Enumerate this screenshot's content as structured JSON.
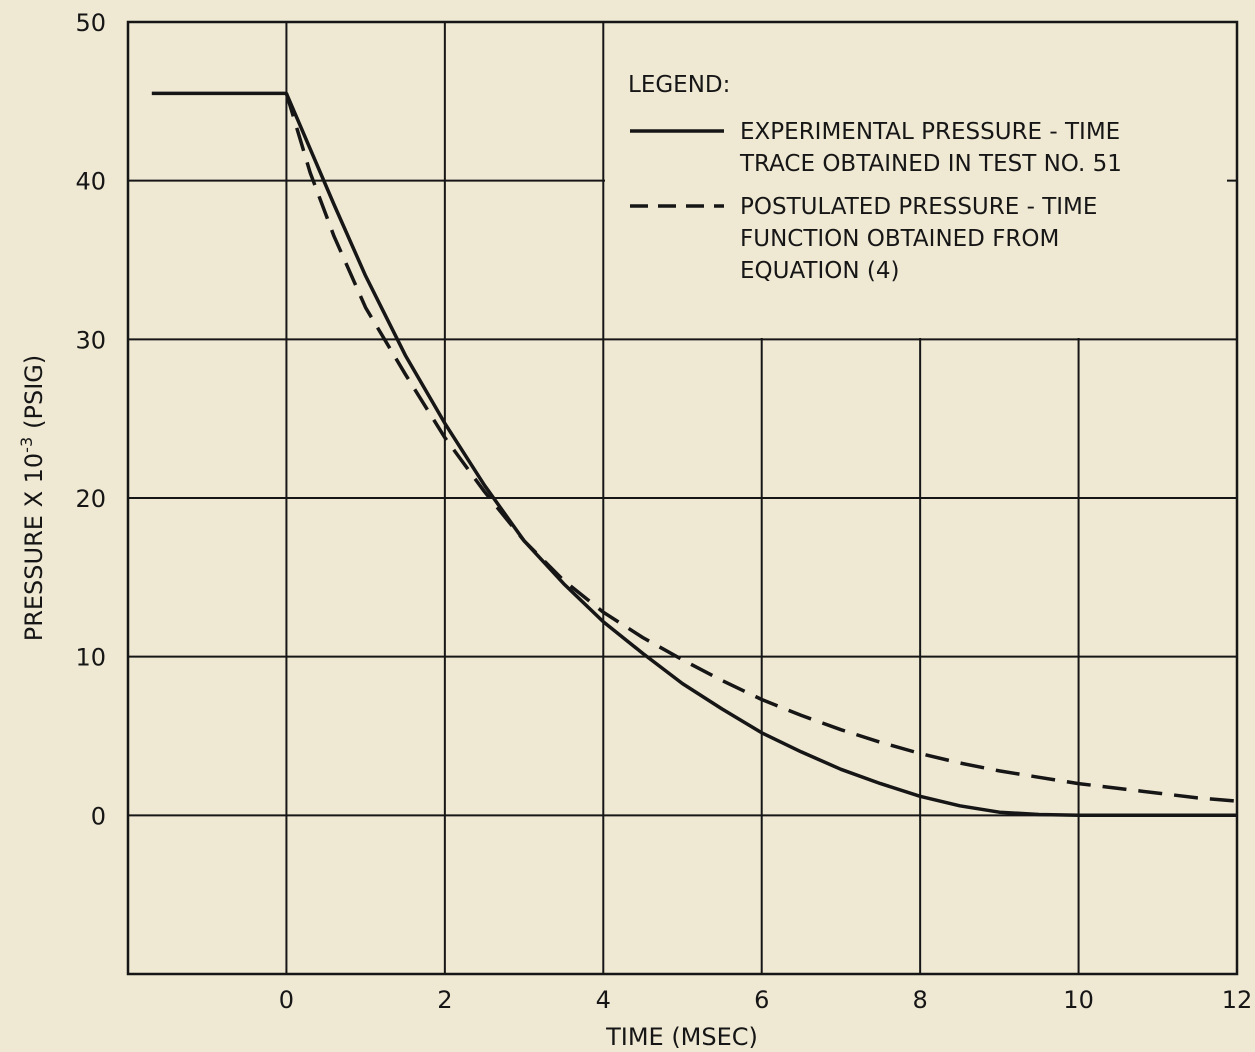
{
  "chart_data": {
    "type": "line",
    "title": "",
    "xlabel": "TIME (MSEC)",
    "ylabel": "PRESSURE X 10",
    "ylabel_exponent": "-3",
    "ylabel_unit": "(PSIG)",
    "xlim": [
      -2,
      12
    ],
    "ylim": [
      -10,
      50
    ],
    "x_ticks": [
      0,
      2,
      4,
      6,
      8,
      10,
      12
    ],
    "y_ticks": [
      0,
      10,
      20,
      30,
      40,
      50
    ],
    "grid": true,
    "legend": {
      "position": "top-right",
      "heading": "LEGEND:",
      "entries": [
        {
          "style": "solid",
          "lines": [
            "EXPERIMENTAL PRESSURE - TIME",
            "TRACE OBTAINED IN TEST NO. 51"
          ]
        },
        {
          "style": "dashed",
          "lines": [
            "POSTULATED PRESSURE - TIME",
            "FUNCTION OBTAINED FROM",
            "EQUATION (4)"
          ]
        }
      ]
    },
    "series": [
      {
        "style": "solid",
        "x": [
          -1.7,
          0,
          0.3,
          0.6,
          1.0,
          1.5,
          2.0,
          2.5,
          3.0,
          3.5,
          4.0,
          4.5,
          5.0,
          5.5,
          6.0,
          6.5,
          7.0,
          7.5,
          8.0,
          8.5,
          9.0,
          9.5,
          10.0,
          11.0,
          12.0
        ],
        "y": [
          45.5,
          45.5,
          42.0,
          38.5,
          34.0,
          29.0,
          24.7,
          20.8,
          17.3,
          14.6,
          12.2,
          10.2,
          8.3,
          6.7,
          5.2,
          4.0,
          2.9,
          2.0,
          1.2,
          0.6,
          0.2,
          0.05,
          0.0,
          0.0,
          0.0
        ]
      },
      {
        "style": "dashed",
        "x": [
          0,
          0.3,
          0.6,
          1.0,
          1.5,
          2.0,
          2.5,
          3.0,
          3.5,
          4.0,
          4.5,
          5.0,
          5.5,
          6.0,
          6.5,
          7.0,
          7.5,
          8.0,
          8.5,
          9.0,
          9.5,
          10.0,
          10.5,
          11.0,
          11.5,
          12.0
        ],
        "y": [
          45.5,
          40.5,
          36.5,
          32.0,
          27.8,
          23.8,
          20.4,
          17.3,
          14.8,
          12.8,
          11.2,
          9.8,
          8.5,
          7.3,
          6.3,
          5.4,
          4.6,
          3.9,
          3.3,
          2.8,
          2.4,
          2.0,
          1.7,
          1.4,
          1.1,
          0.9
        ]
      }
    ]
  }
}
